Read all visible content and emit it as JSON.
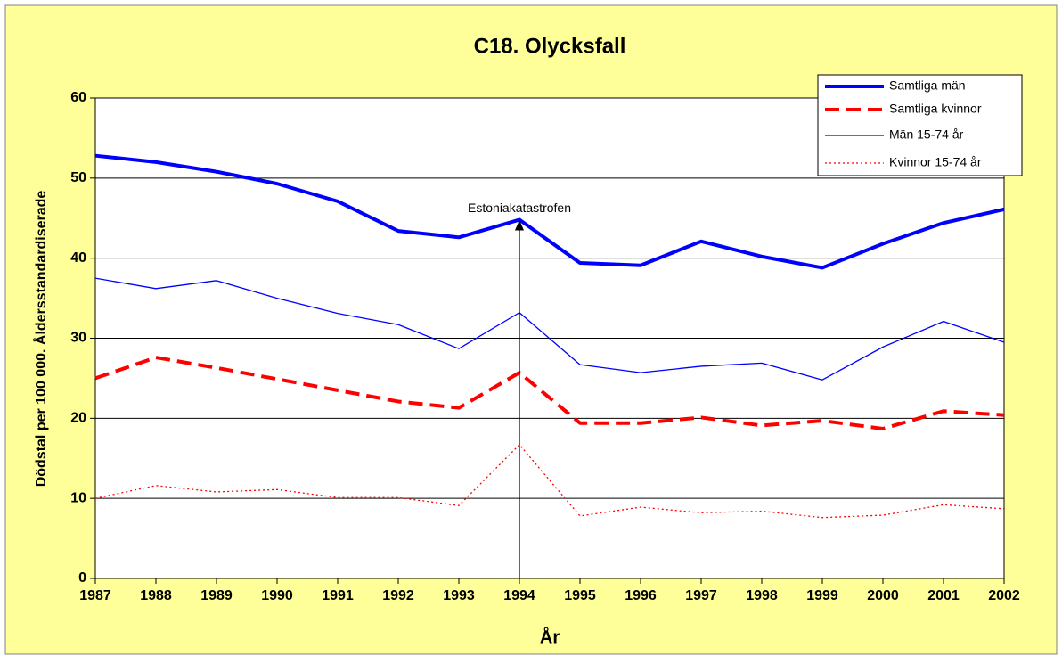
{
  "chart_data": {
    "type": "line",
    "title": "C18. Olycksfall",
    "xlabel": "År",
    "ylabel": "Dödstal per 100 000. Åldersstandardiserade",
    "categories": [
      "1987",
      "1988",
      "1989",
      "1990",
      "1991",
      "1992",
      "1993",
      "1994",
      "1995",
      "1996",
      "1997",
      "1998",
      "1999",
      "2000",
      "2001",
      "2002"
    ],
    "series": [
      {
        "name": "Samtliga män",
        "color": "#0000ff",
        "line_style": "solid",
        "line_width": 4,
        "values": [
          52.8,
          52.0,
          50.8,
          49.3,
          47.1,
          43.4,
          42.6,
          44.8,
          39.4,
          39.1,
          42.1,
          40.2,
          38.8,
          41.8,
          44.4,
          46.1
        ]
      },
      {
        "name": "Samtliga kvinnor",
        "color": "#ff0000",
        "line_style": "dashed",
        "line_width": 4,
        "values": [
          25.0,
          27.6,
          26.3,
          24.9,
          23.5,
          22.1,
          21.3,
          25.7,
          19.4,
          19.4,
          20.1,
          19.1,
          19.7,
          18.7,
          20.9,
          20.4
        ]
      },
      {
        "name": "Män 15-74 år",
        "color": "#0000ff",
        "line_style": "solid",
        "line_width": 1.3,
        "values": [
          37.5,
          36.2,
          37.2,
          35.0,
          33.1,
          31.7,
          28.7,
          33.2,
          26.7,
          25.7,
          26.5,
          26.9,
          24.8,
          28.9,
          32.1,
          29.5
        ]
      },
      {
        "name": "Kvinnor 15-74 år",
        "color": "#ff0000",
        "line_style": "dotted",
        "line_width": 1.3,
        "values": [
          10.0,
          11.6,
          10.8,
          11.1,
          10.1,
          10.1,
          9.1,
          16.7,
          7.8,
          8.9,
          8.2,
          8.4,
          7.6,
          7.9,
          9.2,
          8.7
        ]
      }
    ],
    "annotation": {
      "text": "Estoniakatastrofen",
      "category": "1994"
    },
    "ylim": [
      0,
      60
    ],
    "yticks": [
      0,
      10,
      20,
      30,
      40,
      50,
      60
    ],
    "grid": true,
    "legend": "top-right",
    "background": "#ffff99"
  }
}
